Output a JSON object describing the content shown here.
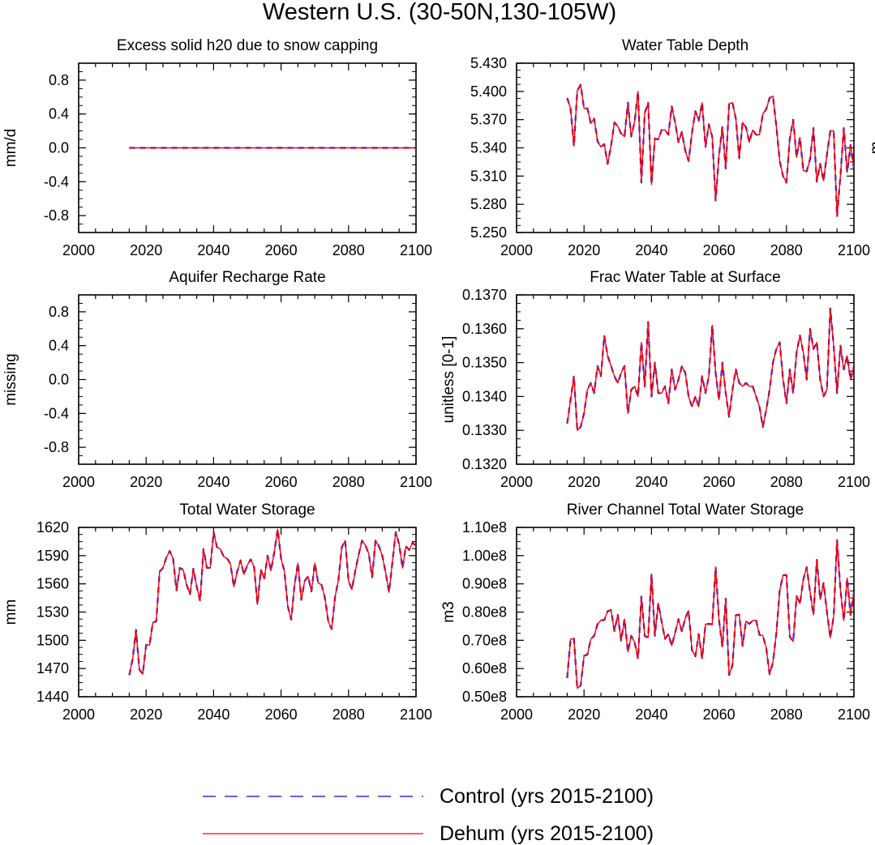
{
  "figure": {
    "title": "Western U.S. (30-50N,130-105W)",
    "legend": [
      {
        "label": "Control (yrs 2015-2100)",
        "color": "#0000ff",
        "style": "dashed"
      },
      {
        "label": "Dehum (yrs 2015-2100)",
        "color": "#ff0000",
        "style": "solid"
      }
    ]
  },
  "chart_data": [
    {
      "type": "line",
      "title": "Excess solid h20 due to snow capping",
      "ylabel": "mm/d",
      "right_label": "",
      "xlim": [
        2000,
        2100
      ],
      "ylim": [
        -1.0,
        1.0
      ],
      "xticks": [
        2000,
        2020,
        2040,
        2060,
        2080,
        2100
      ],
      "yticks": [
        -0.8,
        -0.4,
        0.0,
        0.4,
        0.8
      ],
      "ytick_labels": [
        "-0.8",
        "-0.4",
        "0.0",
        "0.4",
        "0.8"
      ],
      "x_start": 2015,
      "x_end": 2100,
      "series": [
        {
          "name": "Control (yrs 2015-2100)",
          "color": "#0000ff",
          "style": "dashed",
          "values": [
            0,
            0
          ]
        },
        {
          "name": "Dehum (yrs 2015-2100)",
          "color": "#ff0000",
          "style": "solid",
          "values": [
            0,
            0
          ]
        }
      ]
    },
    {
      "type": "line",
      "title": "Water Table Depth",
      "ylabel": "",
      "right_label": "m",
      "xlim": [
        2000,
        2100
      ],
      "ylim": [
        5.25,
        5.43
      ],
      "xticks": [
        2000,
        2020,
        2040,
        2060,
        2080,
        2100
      ],
      "yticks": [
        5.25,
        5.28,
        5.31,
        5.34,
        5.37,
        5.4,
        5.43
      ],
      "ytick_labels": [
        "5.250",
        "5.280",
        "5.310",
        "5.340",
        "5.370",
        "5.400",
        "5.430"
      ],
      "x_start": 2015,
      "x_end": 2100,
      "series": [
        {
          "name": "Control (yrs 2015-2100)",
          "color": "#0000ff",
          "style": "dashed",
          "values": [
            5.393,
            5.382,
            5.342,
            5.401,
            5.407,
            5.382,
            5.382,
            5.366,
            5.371,
            5.347,
            5.341,
            5.344,
            5.323,
            5.342,
            5.367,
            5.363,
            5.355,
            5.352,
            5.388,
            5.352,
            5.368,
            5.4,
            5.303,
            5.377,
            5.388,
            5.301,
            5.35,
            5.349,
            5.359,
            5.359,
            5.354,
            5.384,
            5.367,
            5.346,
            5.357,
            5.337,
            5.326,
            5.356,
            5.379,
            5.369,
            5.388,
            5.341,
            5.365,
            5.352,
            5.284,
            5.332,
            5.362,
            5.318,
            5.387,
            5.388,
            5.371,
            5.329,
            5.367,
            5.362,
            5.346,
            5.359,
            5.354,
            5.354,
            5.376,
            5.381,
            5.393,
            5.395,
            5.363,
            5.326,
            5.31,
            5.303,
            5.35,
            5.37,
            5.33,
            5.351,
            5.316,
            5.315,
            5.328,
            5.361,
            5.304,
            5.323,
            5.305,
            5.333,
            5.358,
            5.358,
            5.267,
            5.31,
            5.361,
            5.314,
            5.343,
            5.318
          ]
        },
        {
          "name": "Dehum (yrs 2015-2100)",
          "color": "#ff0000",
          "style": "solid",
          "values": [
            5.393,
            5.382,
            5.342,
            5.401,
            5.407,
            5.382,
            5.382,
            5.366,
            5.371,
            5.347,
            5.341,
            5.344,
            5.323,
            5.342,
            5.367,
            5.363,
            5.355,
            5.352,
            5.388,
            5.352,
            5.368,
            5.4,
            5.303,
            5.377,
            5.388,
            5.301,
            5.35,
            5.349,
            5.359,
            5.359,
            5.354,
            5.384,
            5.367,
            5.346,
            5.357,
            5.337,
            5.326,
            5.356,
            5.379,
            5.369,
            5.388,
            5.341,
            5.365,
            5.352,
            5.284,
            5.332,
            5.362,
            5.318,
            5.387,
            5.388,
            5.371,
            5.329,
            5.367,
            5.362,
            5.346,
            5.359,
            5.354,
            5.354,
            5.376,
            5.381,
            5.393,
            5.395,
            5.363,
            5.326,
            5.31,
            5.303,
            5.35,
            5.37,
            5.33,
            5.351,
            5.316,
            5.315,
            5.328,
            5.361,
            5.304,
            5.323,
            5.305,
            5.333,
            5.358,
            5.358,
            5.267,
            5.31,
            5.361,
            5.314,
            5.343,
            5.318
          ]
        }
      ]
    },
    {
      "type": "line",
      "title": "Aquifer Recharge Rate",
      "ylabel": "missing",
      "right_label": "",
      "xlim": [
        2000,
        2100
      ],
      "ylim": [
        -1.0,
        1.0
      ],
      "xticks": [
        2000,
        2020,
        2040,
        2060,
        2080,
        2100
      ],
      "yticks": [
        -0.8,
        -0.4,
        0.0,
        0.4,
        0.8
      ],
      "ytick_labels": [
        "-0.8",
        "-0.4",
        "0.0",
        "0.4",
        "0.8"
      ],
      "x_start": 2015,
      "x_end": 2100,
      "series": []
    },
    {
      "type": "line",
      "title": "Frac Water Table at Surface",
      "ylabel": "unitless [0-1]",
      "right_label": "",
      "xlim": [
        2000,
        2100
      ],
      "ylim": [
        0.132,
        0.137
      ],
      "xticks": [
        2000,
        2020,
        2040,
        2060,
        2080,
        2100
      ],
      "yticks": [
        0.132,
        0.133,
        0.134,
        0.135,
        0.136,
        0.137
      ],
      "ytick_labels": [
        "0.1320",
        "0.1330",
        "0.1340",
        "0.1350",
        "0.1360",
        "0.1370"
      ],
      "x_start": 2015,
      "x_end": 2100,
      "series": [
        {
          "name": "Control (yrs 2015-2100)",
          "color": "#0000ff",
          "style": "dashed",
          "values": [
            0.1332,
            0.1339,
            0.1346,
            0.133,
            0.1331,
            0.1335,
            0.1342,
            0.1344,
            0.1341,
            0.1349,
            0.1346,
            0.1358,
            0.1352,
            0.1349,
            0.1346,
            0.1344,
            0.1347,
            0.1349,
            0.1335,
            0.1342,
            0.1343,
            0.134,
            0.1356,
            0.1343,
            0.1362,
            0.134,
            0.135,
            0.1341,
            0.1341,
            0.1343,
            0.1338,
            0.1348,
            0.1342,
            0.1345,
            0.1349,
            0.1347,
            0.134,
            0.1337,
            0.134,
            0.1337,
            0.1346,
            0.1341,
            0.1346,
            0.1361,
            0.1347,
            0.1339,
            0.135,
            0.1341,
            0.1334,
            0.1342,
            0.1348,
            0.1344,
            0.1343,
            0.1344,
            0.1343,
            0.1343,
            0.134,
            0.1337,
            0.1331,
            0.1336,
            0.1342,
            0.135,
            0.1354,
            0.1356,
            0.1345,
            0.1338,
            0.1348,
            0.1341,
            0.1353,
            0.1358,
            0.1353,
            0.1345,
            0.136,
            0.1354,
            0.1356,
            0.1345,
            0.134,
            0.1342,
            0.1366,
            0.1355,
            0.1341,
            0.1355,
            0.1348,
            0.1352,
            0.1345,
            0.1349
          ]
        },
        {
          "name": "Dehum (yrs 2015-2100)",
          "color": "#ff0000",
          "style": "solid",
          "values": [
            0.1332,
            0.1339,
            0.1346,
            0.133,
            0.1331,
            0.1335,
            0.1342,
            0.1344,
            0.1341,
            0.1349,
            0.1346,
            0.1358,
            0.1352,
            0.1349,
            0.1346,
            0.1344,
            0.1347,
            0.1349,
            0.1335,
            0.1342,
            0.1343,
            0.134,
            0.1356,
            0.1343,
            0.1362,
            0.134,
            0.135,
            0.1341,
            0.1341,
            0.1343,
            0.1338,
            0.1348,
            0.1342,
            0.1345,
            0.1349,
            0.1347,
            0.134,
            0.1337,
            0.134,
            0.1337,
            0.1346,
            0.1341,
            0.1346,
            0.1361,
            0.1347,
            0.1339,
            0.135,
            0.1341,
            0.1334,
            0.1342,
            0.1348,
            0.1344,
            0.1343,
            0.1344,
            0.1343,
            0.1343,
            0.134,
            0.1337,
            0.1331,
            0.1336,
            0.1342,
            0.135,
            0.1354,
            0.1356,
            0.1345,
            0.1338,
            0.1348,
            0.1341,
            0.1353,
            0.1358,
            0.1353,
            0.1345,
            0.136,
            0.1354,
            0.1356,
            0.1345,
            0.134,
            0.1342,
            0.1366,
            0.1355,
            0.1341,
            0.1355,
            0.1348,
            0.1352,
            0.1345,
            0.1349
          ]
        }
      ]
    },
    {
      "type": "line",
      "title": "Total Water Storage",
      "ylabel": "mm",
      "right_label": "",
      "xlim": [
        2000,
        2100
      ],
      "ylim": [
        1440,
        1620
      ],
      "xticks": [
        2000,
        2020,
        2040,
        2060,
        2080,
        2100
      ],
      "yticks": [
        1440,
        1470,
        1500,
        1530,
        1560,
        1590,
        1620
      ],
      "ytick_labels": [
        "1440",
        "1470",
        "1500",
        "1530",
        "1560",
        "1590",
        "1620"
      ],
      "x_start": 2015,
      "x_end": 2100,
      "series": [
        {
          "name": "Control (yrs 2015-2100)",
          "color": "#0000ff",
          "style": "dashed",
          "values": [
            1463,
            1480,
            1511,
            1469,
            1464,
            1495,
            1495,
            1519,
            1520,
            1573,
            1577,
            1588,
            1595,
            1587,
            1553,
            1577,
            1575,
            1559,
            1549,
            1576,
            1557,
            1542,
            1597,
            1577,
            1577,
            1615,
            1599,
            1597,
            1589,
            1587,
            1581,
            1557,
            1573,
            1585,
            1570,
            1580,
            1586,
            1578,
            1538,
            1575,
            1565,
            1590,
            1574,
            1594,
            1618,
            1587,
            1573,
            1536,
            1522,
            1559,
            1582,
            1543,
            1563,
            1568,
            1552,
            1582,
            1561,
            1559,
            1545,
            1520,
            1512,
            1546,
            1564,
            1599,
            1606,
            1563,
            1554,
            1574,
            1591,
            1606,
            1601,
            1592,
            1567,
            1606,
            1600,
            1590,
            1572,
            1551,
            1583,
            1615,
            1602,
            1577,
            1600,
            1596,
            1604,
            1600
          ]
        },
        {
          "name": "Dehum (yrs 2015-2100)",
          "color": "#ff0000",
          "style": "solid",
          "values": [
            1463,
            1480,
            1511,
            1469,
            1464,
            1495,
            1495,
            1519,
            1520,
            1573,
            1577,
            1588,
            1595,
            1587,
            1553,
            1577,
            1575,
            1559,
            1549,
            1576,
            1557,
            1542,
            1597,
            1577,
            1577,
            1615,
            1599,
            1597,
            1589,
            1587,
            1581,
            1557,
            1573,
            1585,
            1570,
            1580,
            1586,
            1578,
            1538,
            1575,
            1565,
            1590,
            1574,
            1594,
            1618,
            1587,
            1573,
            1536,
            1522,
            1559,
            1582,
            1543,
            1563,
            1568,
            1552,
            1582,
            1561,
            1559,
            1545,
            1520,
            1512,
            1546,
            1564,
            1599,
            1606,
            1563,
            1554,
            1574,
            1591,
            1606,
            1601,
            1592,
            1567,
            1606,
            1600,
            1590,
            1572,
            1551,
            1583,
            1615,
            1602,
            1577,
            1600,
            1596,
            1604,
            1600
          ]
        }
      ]
    },
    {
      "type": "line",
      "title": "River Channel Total Water Storage",
      "ylabel": "m3",
      "right_label": "",
      "xlim": [
        2000,
        2100
      ],
      "ylim": [
        0.5,
        1.1
      ],
      "y_unit": "1e8",
      "xticks": [
        2000,
        2020,
        2040,
        2060,
        2080,
        2100
      ],
      "yticks": [
        0.5,
        0.6,
        0.7,
        0.8,
        0.9,
        1.0,
        1.1
      ],
      "ytick_labels": [
        "0.50e8",
        "0.60e8",
        "0.70e8",
        "0.80e8",
        "0.90e8",
        "1.00e8",
        "1.10e8"
      ],
      "x_start": 2015,
      "x_end": 2100,
      "series": [
        {
          "name": "Control (yrs 2015-2100)",
          "color": "#0000ff",
          "style": "dashed",
          "values": [
            0.566,
            0.704,
            0.706,
            0.53,
            0.54,
            0.645,
            0.649,
            0.704,
            0.716,
            0.757,
            0.771,
            0.772,
            0.803,
            0.807,
            0.733,
            0.79,
            0.699,
            0.775,
            0.659,
            0.716,
            0.693,
            0.635,
            0.855,
            0.715,
            0.71,
            0.935,
            0.716,
            0.831,
            0.766,
            0.705,
            0.722,
            0.681,
            0.727,
            0.775,
            0.731,
            0.778,
            0.805,
            0.665,
            0.643,
            0.722,
            0.635,
            0.757,
            0.758,
            0.757,
            0.96,
            0.773,
            0.677,
            0.847,
            0.577,
            0.612,
            0.789,
            0.791,
            0.68,
            0.768,
            0.758,
            0.77,
            0.771,
            0.719,
            0.717,
            0.673,
            0.58,
            0.622,
            0.725,
            0.876,
            0.931,
            0.931,
            0.712,
            0.696,
            0.856,
            0.83,
            0.915,
            0.959,
            0.871,
            0.79,
            0.985,
            0.845,
            0.903,
            0.8,
            0.709,
            0.785,
            1.055,
            0.88,
            0.77,
            0.92,
            0.79,
            0.87
          ]
        },
        {
          "name": "Dehum (yrs 2015-2100)",
          "color": "#ff0000",
          "style": "solid",
          "values": [
            0.566,
            0.704,
            0.706,
            0.53,
            0.54,
            0.645,
            0.649,
            0.704,
            0.716,
            0.757,
            0.771,
            0.772,
            0.803,
            0.807,
            0.733,
            0.79,
            0.699,
            0.775,
            0.659,
            0.716,
            0.693,
            0.635,
            0.855,
            0.715,
            0.71,
            0.935,
            0.716,
            0.831,
            0.766,
            0.705,
            0.722,
            0.681,
            0.727,
            0.775,
            0.731,
            0.778,
            0.805,
            0.665,
            0.643,
            0.722,
            0.635,
            0.757,
            0.758,
            0.757,
            0.96,
            0.773,
            0.677,
            0.847,
            0.577,
            0.612,
            0.789,
            0.791,
            0.68,
            0.768,
            0.758,
            0.77,
            0.771,
            0.719,
            0.717,
            0.673,
            0.58,
            0.622,
            0.725,
            0.876,
            0.931,
            0.931,
            0.712,
            0.696,
            0.856,
            0.83,
            0.915,
            0.959,
            0.871,
            0.79,
            0.985,
            0.845,
            0.903,
            0.8,
            0.709,
            0.785,
            1.055,
            0.88,
            0.77,
            0.92,
            0.79,
            0.87
          ]
        }
      ]
    }
  ]
}
